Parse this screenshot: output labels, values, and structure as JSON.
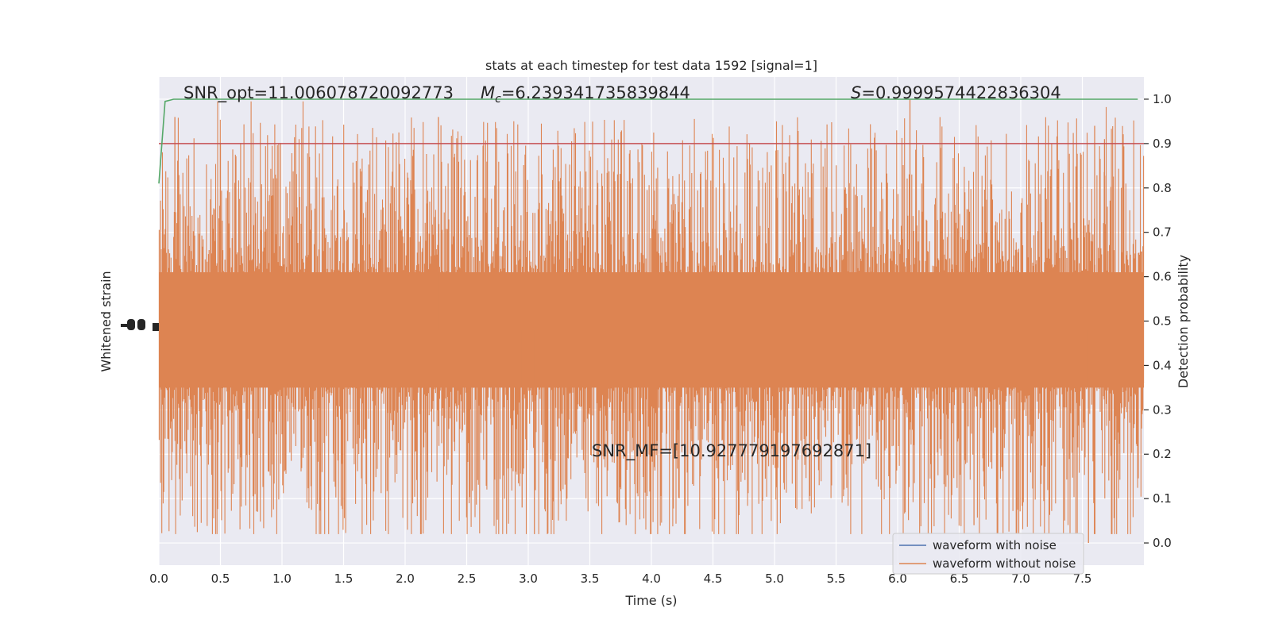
{
  "chart_data": {
    "type": "line",
    "title": "stats at each timestep for test data 1592 [signal=1]",
    "xlabel": "Time (s)",
    "ylabel_left": "Whitened strain",
    "ylabel_right": "Detection probability",
    "xlim": [
      0.0,
      8.0
    ],
    "ylim_right": [
      -0.05,
      1.05
    ],
    "x_ticks": [
      "0.0",
      "0.5",
      "1.0",
      "1.5",
      "2.0",
      "2.5",
      "3.0",
      "3.5",
      "4.0",
      "4.5",
      "5.0",
      "5.5",
      "6.0",
      "6.5",
      "7.0",
      "7.5"
    ],
    "y_ticks_right": [
      "0.0",
      "0.1",
      "0.2",
      "0.3",
      "0.4",
      "0.5",
      "0.6",
      "0.7",
      "0.8",
      "0.9",
      "1.0"
    ],
    "grid": true,
    "legend_position": "lower-right",
    "annotations": {
      "snr_opt": "SNR_opt=11.006078720092773",
      "mc_symbol": "M",
      "mc_subscript": "c",
      "mc_value": "=6.239341735839844",
      "s_symbol": "S",
      "s_value": "=0.9999574422836304",
      "snr_mf": "SNR_MF=[10.927779197692871]"
    },
    "series": [
      {
        "name": "waveform with noise",
        "color": "#4c72b0"
      },
      {
        "name": "waveform without noise",
        "color": "#dd8452"
      },
      {
        "color": "#55a868",
        "x": [
          0.0,
          0.05,
          0.12,
          8.0
        ],
        "y": [
          0.81,
          0.995,
          1.0,
          1.0
        ]
      },
      {
        "color": "#c44e52",
        "y_constant": 0.9
      }
    ],
    "noise_band": {
      "center": 0.48,
      "core_half_width": 0.13,
      "peak_min": 0.02,
      "peak_max": 1.0,
      "color": "#dd8452"
    }
  }
}
